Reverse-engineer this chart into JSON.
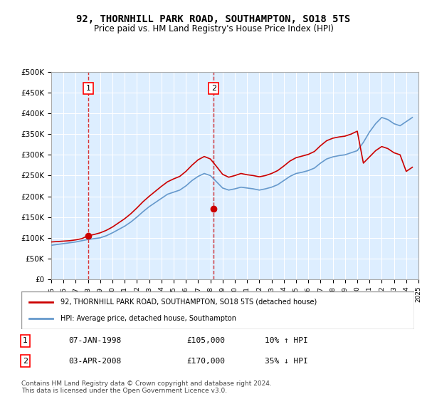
{
  "title": "92, THORNHILL PARK ROAD, SOUTHAMPTON, SO18 5TS",
  "subtitle": "Price paid vs. HM Land Registry's House Price Index (HPI)",
  "legend_line1": "92, THORNHILL PARK ROAD, SOUTHAMPTON, SO18 5TS (detached house)",
  "legend_line2": "HPI: Average price, detached house, Southampton",
  "transaction1": {
    "label": "1",
    "date": "07-JAN-1998",
    "price": "£105,000",
    "hpi": "10% ↑ HPI",
    "year": 1998.03
  },
  "transaction2": {
    "label": "2",
    "date": "03-APR-2008",
    "price": "£170,000",
    "hpi": "35% ↓ HPI",
    "year": 2008.27
  },
  "footnote": "Contains HM Land Registry data © Crown copyright and database right 2024.\nThis data is licensed under the Open Government Licence v3.0.",
  "hpi_x": [
    1995,
    1995.5,
    1996,
    1996.5,
    1997,
    1997.5,
    1998,
    1998.5,
    1999,
    1999.5,
    2000,
    2000.5,
    2001,
    2001.5,
    2002,
    2002.5,
    2003,
    2003.5,
    2004,
    2004.5,
    2005,
    2005.5,
    2006,
    2006.5,
    2007,
    2007.5,
    2008,
    2008.5,
    2009,
    2009.5,
    2010,
    2010.5,
    2011,
    2011.5,
    2012,
    2012.5,
    2013,
    2013.5,
    2014,
    2014.5,
    2015,
    2015.5,
    2016,
    2016.5,
    2017,
    2017.5,
    2018,
    2018.5,
    2019,
    2019.5,
    2020,
    2020.5,
    2021,
    2021.5,
    2022,
    2022.5,
    2023,
    2023.5,
    2024,
    2024.5
  ],
  "hpi_y": [
    82000,
    84000,
    86000,
    88000,
    90000,
    93000,
    96000,
    98000,
    100000,
    105000,
    112000,
    120000,
    128000,
    138000,
    150000,
    163000,
    175000,
    185000,
    195000,
    205000,
    210000,
    215000,
    225000,
    238000,
    248000,
    255000,
    250000,
    235000,
    220000,
    215000,
    218000,
    222000,
    220000,
    218000,
    215000,
    218000,
    222000,
    228000,
    238000,
    248000,
    255000,
    258000,
    262000,
    268000,
    280000,
    290000,
    295000,
    298000,
    300000,
    305000,
    310000,
    330000,
    355000,
    375000,
    390000,
    385000,
    375000,
    370000,
    380000,
    390000
  ],
  "prop_x": [
    1995,
    1995.5,
    1996,
    1996.5,
    1997,
    1997.5,
    1998,
    1998.5,
    1999,
    1999.5,
    2000,
    2000.5,
    2001,
    2001.5,
    2002,
    2002.5,
    2003,
    2003.5,
    2004,
    2004.5,
    2005,
    2005.5,
    2006,
    2006.5,
    2007,
    2007.5,
    2008,
    2008.5,
    2009,
    2009.5,
    2010,
    2010.5,
    2011,
    2011.5,
    2012,
    2012.5,
    2013,
    2013.5,
    2014,
    2014.5,
    2015,
    2015.5,
    2016,
    2016.5,
    2017,
    2017.5,
    2018,
    2018.5,
    2019,
    2019.5,
    2020,
    2020.5,
    2021,
    2021.5,
    2022,
    2022.5,
    2023,
    2023.5,
    2024,
    2024.5
  ],
  "prop_y": [
    90000,
    91000,
    92000,
    93000,
    95000,
    98000,
    105000,
    108000,
    112000,
    118000,
    126000,
    136000,
    146000,
    158000,
    172000,
    187000,
    200000,
    212000,
    224000,
    235000,
    242000,
    248000,
    260000,
    275000,
    288000,
    296000,
    290000,
    272000,
    253000,
    246000,
    250000,
    255000,
    252000,
    250000,
    247000,
    250000,
    255000,
    262000,
    273000,
    285000,
    293000,
    297000,
    301000,
    308000,
    322000,
    334000,
    340000,
    343000,
    345000,
    350000,
    357000,
    280000,
    295000,
    310000,
    320000,
    315000,
    305000,
    300000,
    260000,
    270000
  ],
  "sale1_x": 1998.03,
  "sale1_y": 105000,
  "sale2_x": 2008.27,
  "sale2_y": 170000,
  "ylim": [
    0,
    500000
  ],
  "xlim": [
    1995,
    2025
  ],
  "bg_color": "#ddeeff",
  "red_color": "#cc0000",
  "blue_color": "#6699cc"
}
